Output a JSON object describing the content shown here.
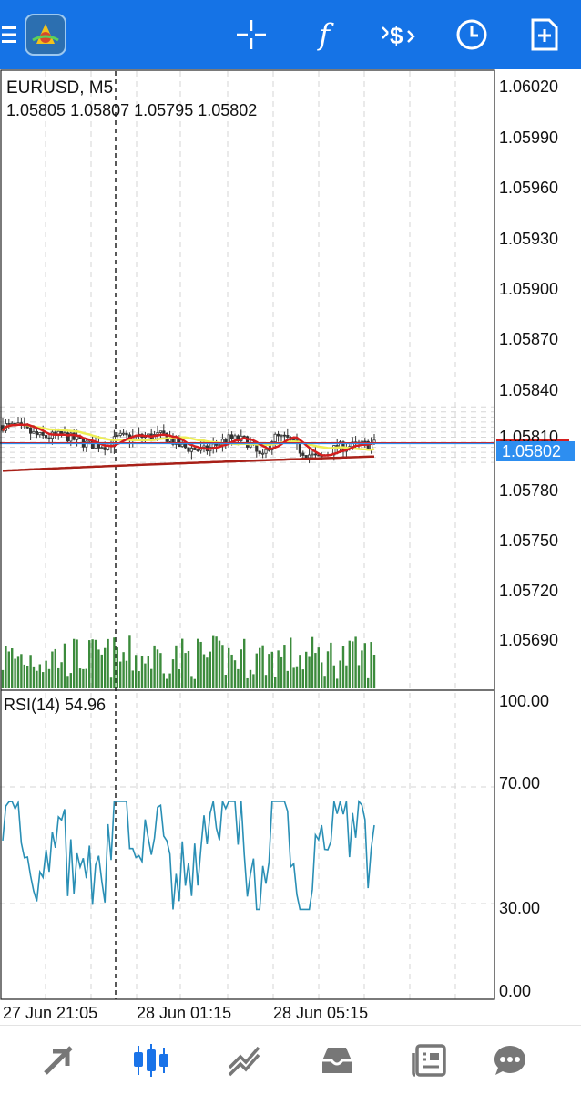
{
  "toolbar": {
    "icons": [
      "menu-icon",
      "app-logo-icon",
      "crosshair-icon",
      "indicators-icon",
      "trade-icon",
      "period-icon",
      "new-object-icon"
    ],
    "indicators_label": "f"
  },
  "chart": {
    "symbol": "EURUSD, M5",
    "ohlc": "1.05805 1.05807 1.05795 1.05802",
    "current_price": "1.05802",
    "y_labels": [
      "1.06020",
      "1.05990",
      "1.05960",
      "1.05930",
      "1.05900",
      "1.05870",
      "1.05840",
      "1.05810",
      "1.05780",
      "1.05750",
      "1.05720",
      "1.05690"
    ],
    "x_labels": [
      "27 Jun 21:05",
      "28 Jun 01:15",
      "28 Jun 05:15"
    ]
  },
  "rsi": {
    "label": "RSI(14) 54.96",
    "y_labels": [
      "100.00",
      "70.00",
      "30.00",
      "0.00"
    ]
  },
  "chart_data": {
    "type": "candlestick",
    "symbol": "EURUSD",
    "timeframe": "M5",
    "ylim": [
      1.0568,
      1.0603
    ],
    "last": {
      "open": 1.05805,
      "high": 1.05807,
      "low": 1.05795,
      "close": 1.05802
    },
    "series": [
      {
        "name": "RSI(14)",
        "last_value": 54.96,
        "ylim": [
          0,
          100
        ],
        "levels": [
          70,
          30
        ]
      }
    ]
  },
  "bottom_nav": {
    "items": [
      "quotes-icon",
      "charts-icon",
      "trade-icon",
      "history-icon",
      "news-icon",
      "messages-icon"
    ],
    "active": "charts-icon"
  },
  "colors": {
    "accent": "#1573e6",
    "price_line": "#2d8ef0",
    "ma_fast": "#d41e1e",
    "ma_mid": "#eeee55",
    "ma_slow": "#a82018",
    "volume": "#3c8b3c",
    "rsi_line": "#2a8fb5"
  }
}
